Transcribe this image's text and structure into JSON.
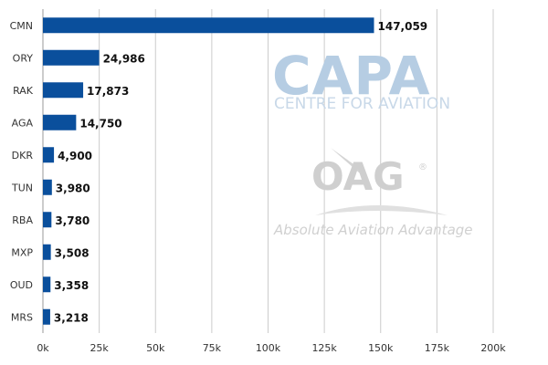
{
  "chart_data": {
    "type": "bar",
    "orientation": "horizontal",
    "categories": [
      "CMN",
      "ORY",
      "RAK",
      "AGA",
      "DKR",
      "TUN",
      "RBA",
      "MXP",
      "OUD",
      "MRS"
    ],
    "values": [
      147059,
      24986,
      17873,
      14750,
      4900,
      3980,
      3780,
      3508,
      3358,
      3218
    ],
    "value_labels": [
      "147,059",
      "24,986",
      "17,873",
      "14,750",
      "4,900",
      "3,980",
      "3,780",
      "3,508",
      "3,358",
      "3,218"
    ],
    "xlim": [
      0,
      200000
    ],
    "x_ticks": [
      0,
      25000,
      50000,
      75000,
      100000,
      125000,
      150000,
      175000,
      200000
    ],
    "x_tick_labels": [
      "0k",
      "25k",
      "50k",
      "75k",
      "100k",
      "125k",
      "150k",
      "175k",
      "200k"
    ],
    "bar_color": "#0a4f9c",
    "grid": "vertical",
    "title": "",
    "xlabel": "",
    "ylabel": ""
  },
  "watermark": {
    "capa": "CAPA",
    "capa_sub": "CENTRE FOR AVIATION",
    "oag": "OAG",
    "oag_tagline": "Absolute Aviation Advantage",
    "capa_color": "#b6cde3",
    "oag_color": "#cfcfcf"
  }
}
